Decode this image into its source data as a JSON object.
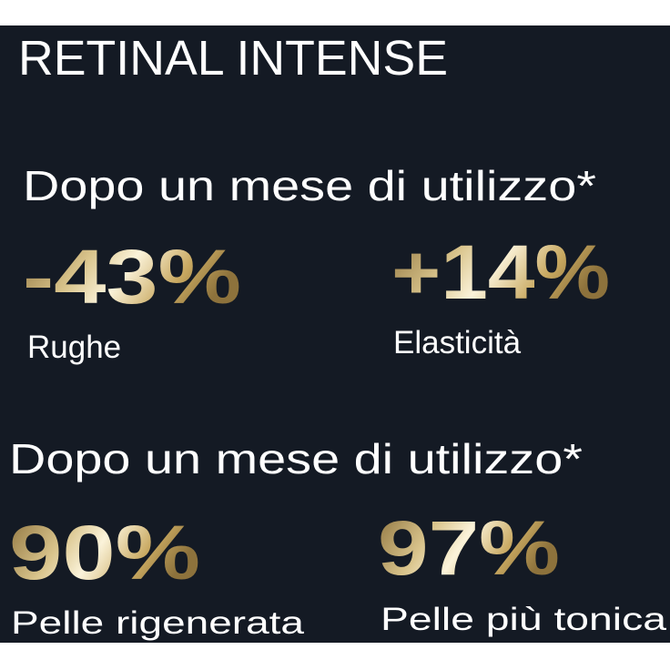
{
  "title": "RETINAL INTENSE",
  "sections": [
    {
      "heading": "Dopo un mese di utilizzo*",
      "stats": [
        {
          "value": "-43%",
          "label": "Rughe"
        },
        {
          "value": "+14%",
          "label": "Elasticità"
        }
      ]
    },
    {
      "heading": "Dopo un mese di utilizzo*",
      "stats": [
        {
          "value": "90%",
          "label": "Pelle rigenerata"
        },
        {
          "value": "97%",
          "label": "Pelle più tonica"
        }
      ]
    }
  ]
}
